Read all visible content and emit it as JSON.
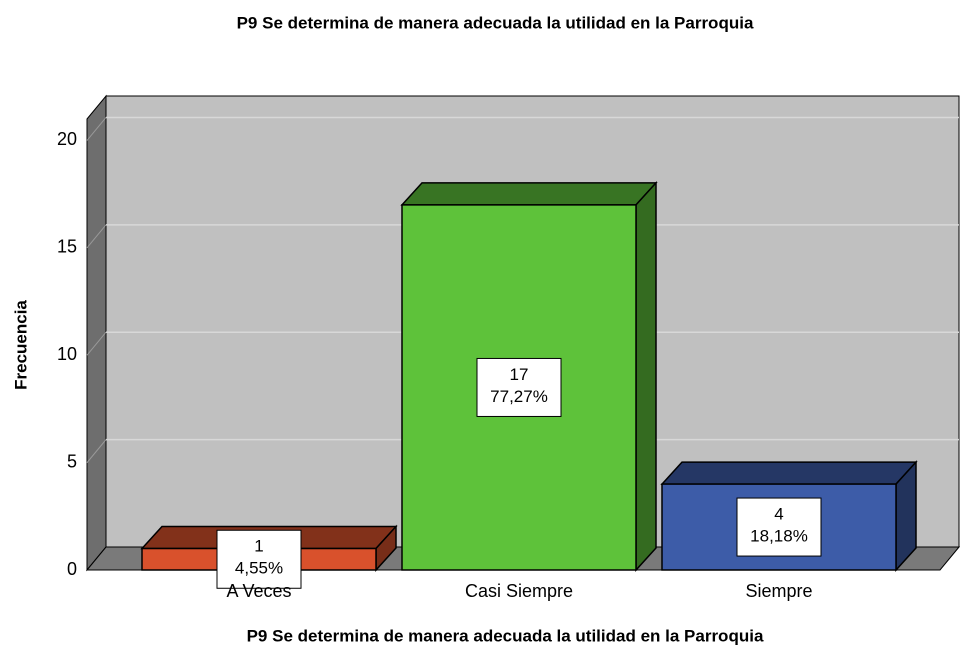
{
  "chart_data": {
    "type": "bar3d",
    "title": "P9 Se determina de manera adecuada la utilidad en la Parroquia",
    "x_label": "P9 Se determina de manera adecuada la utilidad en la Parroquia",
    "y_label": "Frecuencia",
    "categories": [
      "A Veces",
      "Casi Siempre",
      "Siempre"
    ],
    "values": [
      1,
      17,
      4
    ],
    "percent_labels": [
      "4,55%",
      "77,27%",
      "18,18%"
    ],
    "colors": [
      "#d9512c",
      "#5ec23a",
      "#3d5ca8"
    ],
    "ylim": [
      0,
      21
    ],
    "yticks": [
      0,
      5,
      10,
      15,
      20
    ],
    "grid": true
  }
}
